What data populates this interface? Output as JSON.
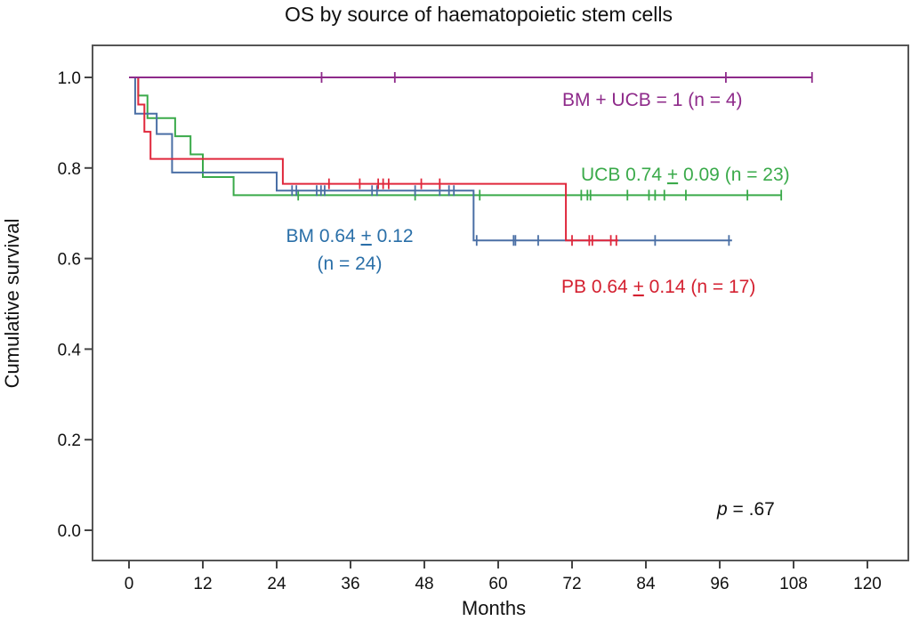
{
  "chart_data": {
    "type": "line",
    "subtype": "kaplan-meier",
    "title": "OS by source of haematopoietic stem cells",
    "xlabel": "Months",
    "ylabel": "Cumulative survival",
    "xlim": [
      -4,
      126
    ],
    "ylim": [
      0,
      1.0
    ],
    "xticks": [
      0,
      12,
      24,
      36,
      48,
      60,
      72,
      84,
      96,
      108,
      120
    ],
    "xtick_labels": [
      "0",
      "12",
      "24",
      "36",
      "48",
      "60",
      "72",
      "84",
      "96",
      "108",
      "120"
    ],
    "yticks": [
      0.0,
      0.2,
      0.4,
      0.6,
      0.8,
      1.0
    ],
    "ytick_labels": [
      "0.0",
      "0.2",
      "0.4",
      "0.6",
      "0.8",
      "1.0"
    ],
    "grid": false,
    "series": [
      {
        "name": "BM + UCB",
        "label": "BM + UCB = 1 (n = 4)",
        "color": "#8e2a8a",
        "steps": [
          [
            0,
            1.0
          ],
          [
            111,
            1.0
          ]
        ],
        "censored": [
          [
            31.3,
            1.0
          ],
          [
            43.2,
            1.0
          ],
          [
            97,
            1.0
          ],
          [
            111,
            1.0
          ]
        ]
      },
      {
        "name": "UCB",
        "label": "UCB 0.74 ± 0.09 (n = 23)",
        "label_parts": [
          "UCB 0.74 ",
          "+",
          " 0.09 (n = 23)"
        ],
        "color": "#3aaa4a",
        "steps": [
          [
            0,
            1.0
          ],
          [
            1.5,
            0.96
          ],
          [
            3,
            0.91
          ],
          [
            7.5,
            0.87
          ],
          [
            10,
            0.83
          ],
          [
            12,
            0.78
          ],
          [
            17,
            0.74
          ],
          [
            106,
            0.74
          ]
        ],
        "censored": [
          [
            27.5,
            0.74
          ],
          [
            46.5,
            0.74
          ],
          [
            57,
            0.74
          ],
          [
            73.5,
            0.74
          ],
          [
            74.5,
            0.74
          ],
          [
            75,
            0.74
          ],
          [
            81,
            0.74
          ],
          [
            84.5,
            0.74
          ],
          [
            85.5,
            0.74
          ],
          [
            87,
            0.74
          ],
          [
            90.5,
            0.74
          ],
          [
            100.5,
            0.74
          ],
          [
            106,
            0.74
          ]
        ]
      },
      {
        "name": "BM",
        "label": "BM 0.64 ± 0.12 (n = 24)",
        "label_parts": [
          "BM 0.64 ",
          "+",
          " 0.12",
          "(n = 24)"
        ],
        "color": "#4a6fa5",
        "steps": [
          [
            0,
            1.0
          ],
          [
            1,
            0.92
          ],
          [
            4.5,
            0.875
          ],
          [
            7,
            0.79
          ],
          [
            24,
            0.75
          ],
          [
            56,
            0.64
          ],
          [
            98,
            0.64
          ]
        ],
        "censored": [
          [
            26.5,
            0.75
          ],
          [
            27.2,
            0.75
          ],
          [
            30.5,
            0.75
          ],
          [
            31.2,
            0.75
          ],
          [
            31.8,
            0.75
          ],
          [
            39.5,
            0.75
          ],
          [
            40.3,
            0.75
          ],
          [
            46.5,
            0.75
          ],
          [
            50.5,
            0.75
          ],
          [
            52,
            0.75
          ],
          [
            52.8,
            0.75
          ],
          [
            56.5,
            0.64
          ],
          [
            62.5,
            0.64
          ],
          [
            62.8,
            0.64
          ],
          [
            66.5,
            0.64
          ],
          [
            85.5,
            0.64
          ],
          [
            97.5,
            0.64
          ]
        ]
      },
      {
        "name": "PB",
        "label": "PB 0.64 ± 0.14 (n = 17)",
        "label_parts": [
          "PB 0.64 ",
          "+",
          " 0.14 (n = 17)"
        ],
        "color": "#e0283c",
        "steps": [
          [
            0,
            1.0
          ],
          [
            1.5,
            0.94
          ],
          [
            2.5,
            0.88
          ],
          [
            3.5,
            0.82
          ],
          [
            25,
            0.765
          ],
          [
            71,
            0.64
          ],
          [
            79.5,
            0.64
          ]
        ],
        "censored": [
          [
            32.5,
            0.765
          ],
          [
            37.5,
            0.765
          ],
          [
            40.5,
            0.765
          ],
          [
            41.3,
            0.765
          ],
          [
            42.2,
            0.765
          ],
          [
            47.5,
            0.765
          ],
          [
            50.5,
            0.765
          ],
          [
            72,
            0.64
          ],
          [
            74.8,
            0.64
          ],
          [
            75.3,
            0.64
          ],
          [
            78.3,
            0.64
          ],
          [
            79.2,
            0.64
          ]
        ]
      }
    ],
    "annotations": [
      {
        "text_parts": [
          "p",
          " = .67"
        ],
        "text": "p = .67"
      }
    ]
  }
}
